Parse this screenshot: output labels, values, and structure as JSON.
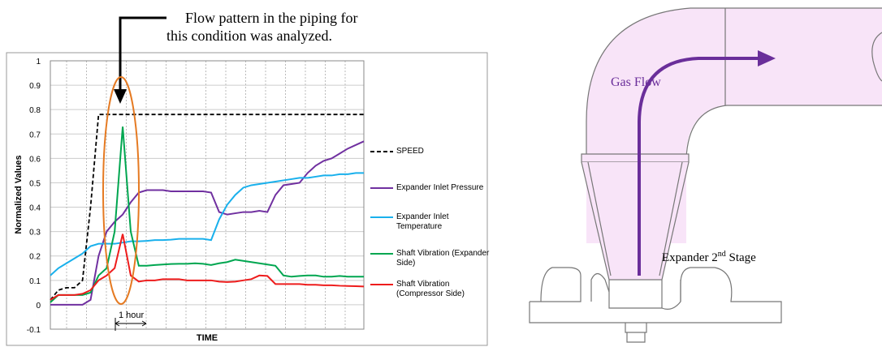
{
  "chart_data": {
    "type": "line",
    "annotation": "Flow pattern in the piping for this condition was analyzed.",
    "duration_label": "1 hour",
    "y_label": "Normalized Values",
    "x_label": "TIME",
    "categories": [
      null,
      null,
      null,
      null,
      null,
      null,
      null,
      null,
      null,
      null,
      null,
      null,
      null,
      null,
      null,
      null,
      null,
      null,
      null,
      null,
      null,
      null,
      null,
      null,
      null,
      null,
      null,
      null,
      null,
      null,
      null,
      null,
      null,
      null,
      null,
      null,
      null,
      null,
      null,
      null
    ],
    "ylim": [
      -0.1,
      1
    ],
    "yticks": [
      -0.1,
      0,
      0.1,
      0.2,
      0.3,
      0.4,
      0.5,
      0.6,
      0.7,
      0.8,
      0.9,
      1
    ],
    "grid": true,
    "legend": "right",
    "series": [
      {
        "name": "SPEED",
        "color": "#000000",
        "dash": true,
        "values": [
          0.02,
          0.06,
          0.07,
          0.07,
          0.1,
          0.4,
          0.78,
          0.78,
          0.78,
          0.78,
          0.78,
          0.78,
          0.78,
          0.78,
          0.78,
          0.78,
          0.78,
          0.78,
          0.78,
          0.78,
          0.78,
          0.78,
          0.78,
          0.78,
          0.78,
          0.78,
          0.78,
          0.78,
          0.78,
          0.78,
          0.78,
          0.78,
          0.78,
          0.78,
          0.78,
          0.78,
          0.78,
          0.78,
          0.78,
          0.78
        ]
      },
      {
        "name": "Expander Inlet Pressure",
        "color": "#7030a0",
        "values": [
          0,
          0,
          0,
          0,
          0,
          0.02,
          0.2,
          0.3,
          0.34,
          0.37,
          0.42,
          0.46,
          0.47,
          0.47,
          0.47,
          0.465,
          0.465,
          0.465,
          0.465,
          0.465,
          0.46,
          0.38,
          0.37,
          0.375,
          0.38,
          0.38,
          0.385,
          0.38,
          0.45,
          0.49,
          0.495,
          0.5,
          0.54,
          0.57,
          0.59,
          0.6,
          0.62,
          0.64,
          0.655,
          0.67
        ]
      },
      {
        "name": "Expander Inlet Temperature",
        "color": "#19b0ec",
        "values": [
          0.12,
          0.15,
          0.17,
          0.19,
          0.21,
          0.24,
          0.25,
          0.25,
          0.25,
          0.255,
          0.26,
          0.26,
          0.262,
          0.265,
          0.265,
          0.267,
          0.27,
          0.27,
          0.27,
          0.27,
          0.265,
          0.35,
          0.41,
          0.45,
          0.48,
          0.49,
          0.495,
          0.5,
          0.505,
          0.51,
          0.515,
          0.52,
          0.52,
          0.525,
          0.53,
          0.53,
          0.535,
          0.535,
          0.54,
          0.54
        ]
      },
      {
        "name": "Shaft Vibration (Expander Side)",
        "color": "#00a650",
        "values": [
          0.01,
          0.04,
          0.04,
          0.04,
          0.04,
          0.05,
          0.12,
          0.15,
          0.3,
          0.73,
          0.3,
          0.16,
          0.16,
          0.163,
          0.165,
          0.167,
          0.168,
          0.168,
          0.17,
          0.168,
          0.163,
          0.17,
          0.175,
          0.185,
          0.18,
          0.175,
          0.17,
          0.165,
          0.16,
          0.12,
          0.115,
          0.118,
          0.12,
          0.12,
          0.115,
          0.115,
          0.118,
          0.115,
          0.115,
          0.115
        ]
      },
      {
        "name": "Shaft Vibration (Compressor Side)",
        "color": "#ee1c1c",
        "values": [
          0.02,
          0.04,
          0.04,
          0.04,
          0.045,
          0.06,
          0.1,
          0.12,
          0.15,
          0.29,
          0.12,
          0.095,
          0.1,
          0.1,
          0.105,
          0.105,
          0.105,
          0.1,
          0.1,
          0.1,
          0.1,
          0.095,
          0.093,
          0.095,
          0.1,
          0.105,
          0.12,
          0.118,
          0.085,
          0.085,
          0.085,
          0.085,
          0.082,
          0.082,
          0.08,
          0.08,
          0.078,
          0.077,
          0.076,
          0.075
        ]
      }
    ]
  },
  "diagram": {
    "flow_label": "Gas Flow",
    "stage_label": {
      "text": "Expander 2",
      "sup": "nd",
      "rest": " Stage"
    }
  }
}
